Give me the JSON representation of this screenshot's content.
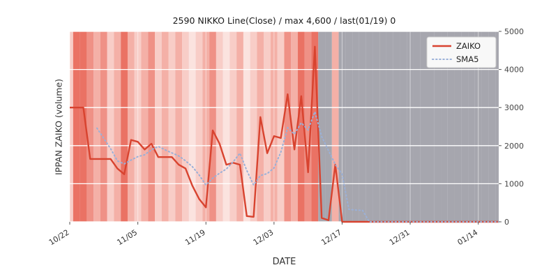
{
  "chart_data": {
    "type": "line",
    "title": "2590 NIKKO Line(Close) / max 4,600 / last(01/19) 0",
    "xlabel": "DATE",
    "ylabel": "IPPAN ZAIKO (volume)",
    "ylim": [
      0,
      5000
    ],
    "yticks": [
      0,
      1000,
      2000,
      3000,
      4000,
      5000
    ],
    "xticks": [
      {
        "index": 0,
        "label": "10/22"
      },
      {
        "index": 10,
        "label": "11/05"
      },
      {
        "index": 20,
        "label": "11/19"
      },
      {
        "index": 30,
        "label": "12/03"
      },
      {
        "index": 40,
        "label": "12/17"
      },
      {
        "index": 50,
        "label": "12/31"
      },
      {
        "index": 60,
        "label": "01/14"
      }
    ],
    "series": [
      {
        "name": "ZAIKO",
        "color": "#d8432f",
        "style": "solid",
        "values": [
          3000,
          3000,
          3000,
          1650,
          1650,
          1650,
          1650,
          1400,
          1250,
          2150,
          2100,
          1900,
          2050,
          1700,
          1700,
          1700,
          1500,
          1400,
          950,
          600,
          380,
          2400,
          2050,
          1500,
          1550,
          1500,
          150,
          130,
          2750,
          1800,
          2250,
          2200,
          3350,
          1900,
          3300,
          1300,
          4600,
          100,
          40,
          1500,
          0,
          0,
          0,
          0,
          0,
          0,
          0,
          0,
          0,
          0,
          0,
          0,
          0,
          0,
          0,
          0,
          0,
          0,
          0,
          0,
          0,
          0,
          0,
          0
        ]
      },
      {
        "name": "SMA5",
        "color": "#9ab0d8",
        "style": "dotted",
        "derived": "sma5-of-ZAIKO"
      }
    ],
    "background_bands": {
      "palette": {
        "p0": "#fbe3df",
        "p1": "#f8cdc7",
        "p2": "#f4b0a7",
        "p3": "#ef9186",
        "p4": "#ea7264",
        "g": "#a6a6ae"
      },
      "colors": [
        "p1",
        "p4",
        "p4",
        "p3",
        "p2",
        "p3",
        "p1",
        "p2",
        "p4",
        "p2",
        "p1",
        "p2",
        "p3",
        "p1",
        "p2",
        "p1",
        "p2",
        "p1",
        "p0",
        "p1",
        "p2",
        "p3",
        "p1",
        "p0",
        "p1",
        "p2",
        "p0",
        "p1",
        "p2",
        "p1",
        "p2",
        "p1",
        "p3",
        "p2",
        "p4",
        "p3",
        "p4",
        "g",
        "g",
        "p2",
        "g",
        "g",
        "g",
        "g",
        "g",
        "g",
        "g",
        "g",
        "g",
        "g",
        "g",
        "g",
        "g",
        "g",
        "g",
        "g",
        "g",
        "g",
        "g",
        "g",
        "g",
        "g",
        "g",
        "g"
      ]
    },
    "legend": {
      "position": "upper right",
      "entries": [
        "ZAIKO",
        "SMA5"
      ]
    },
    "plot_background": "#ebebf1",
    "grid_color": "#ffffff"
  }
}
